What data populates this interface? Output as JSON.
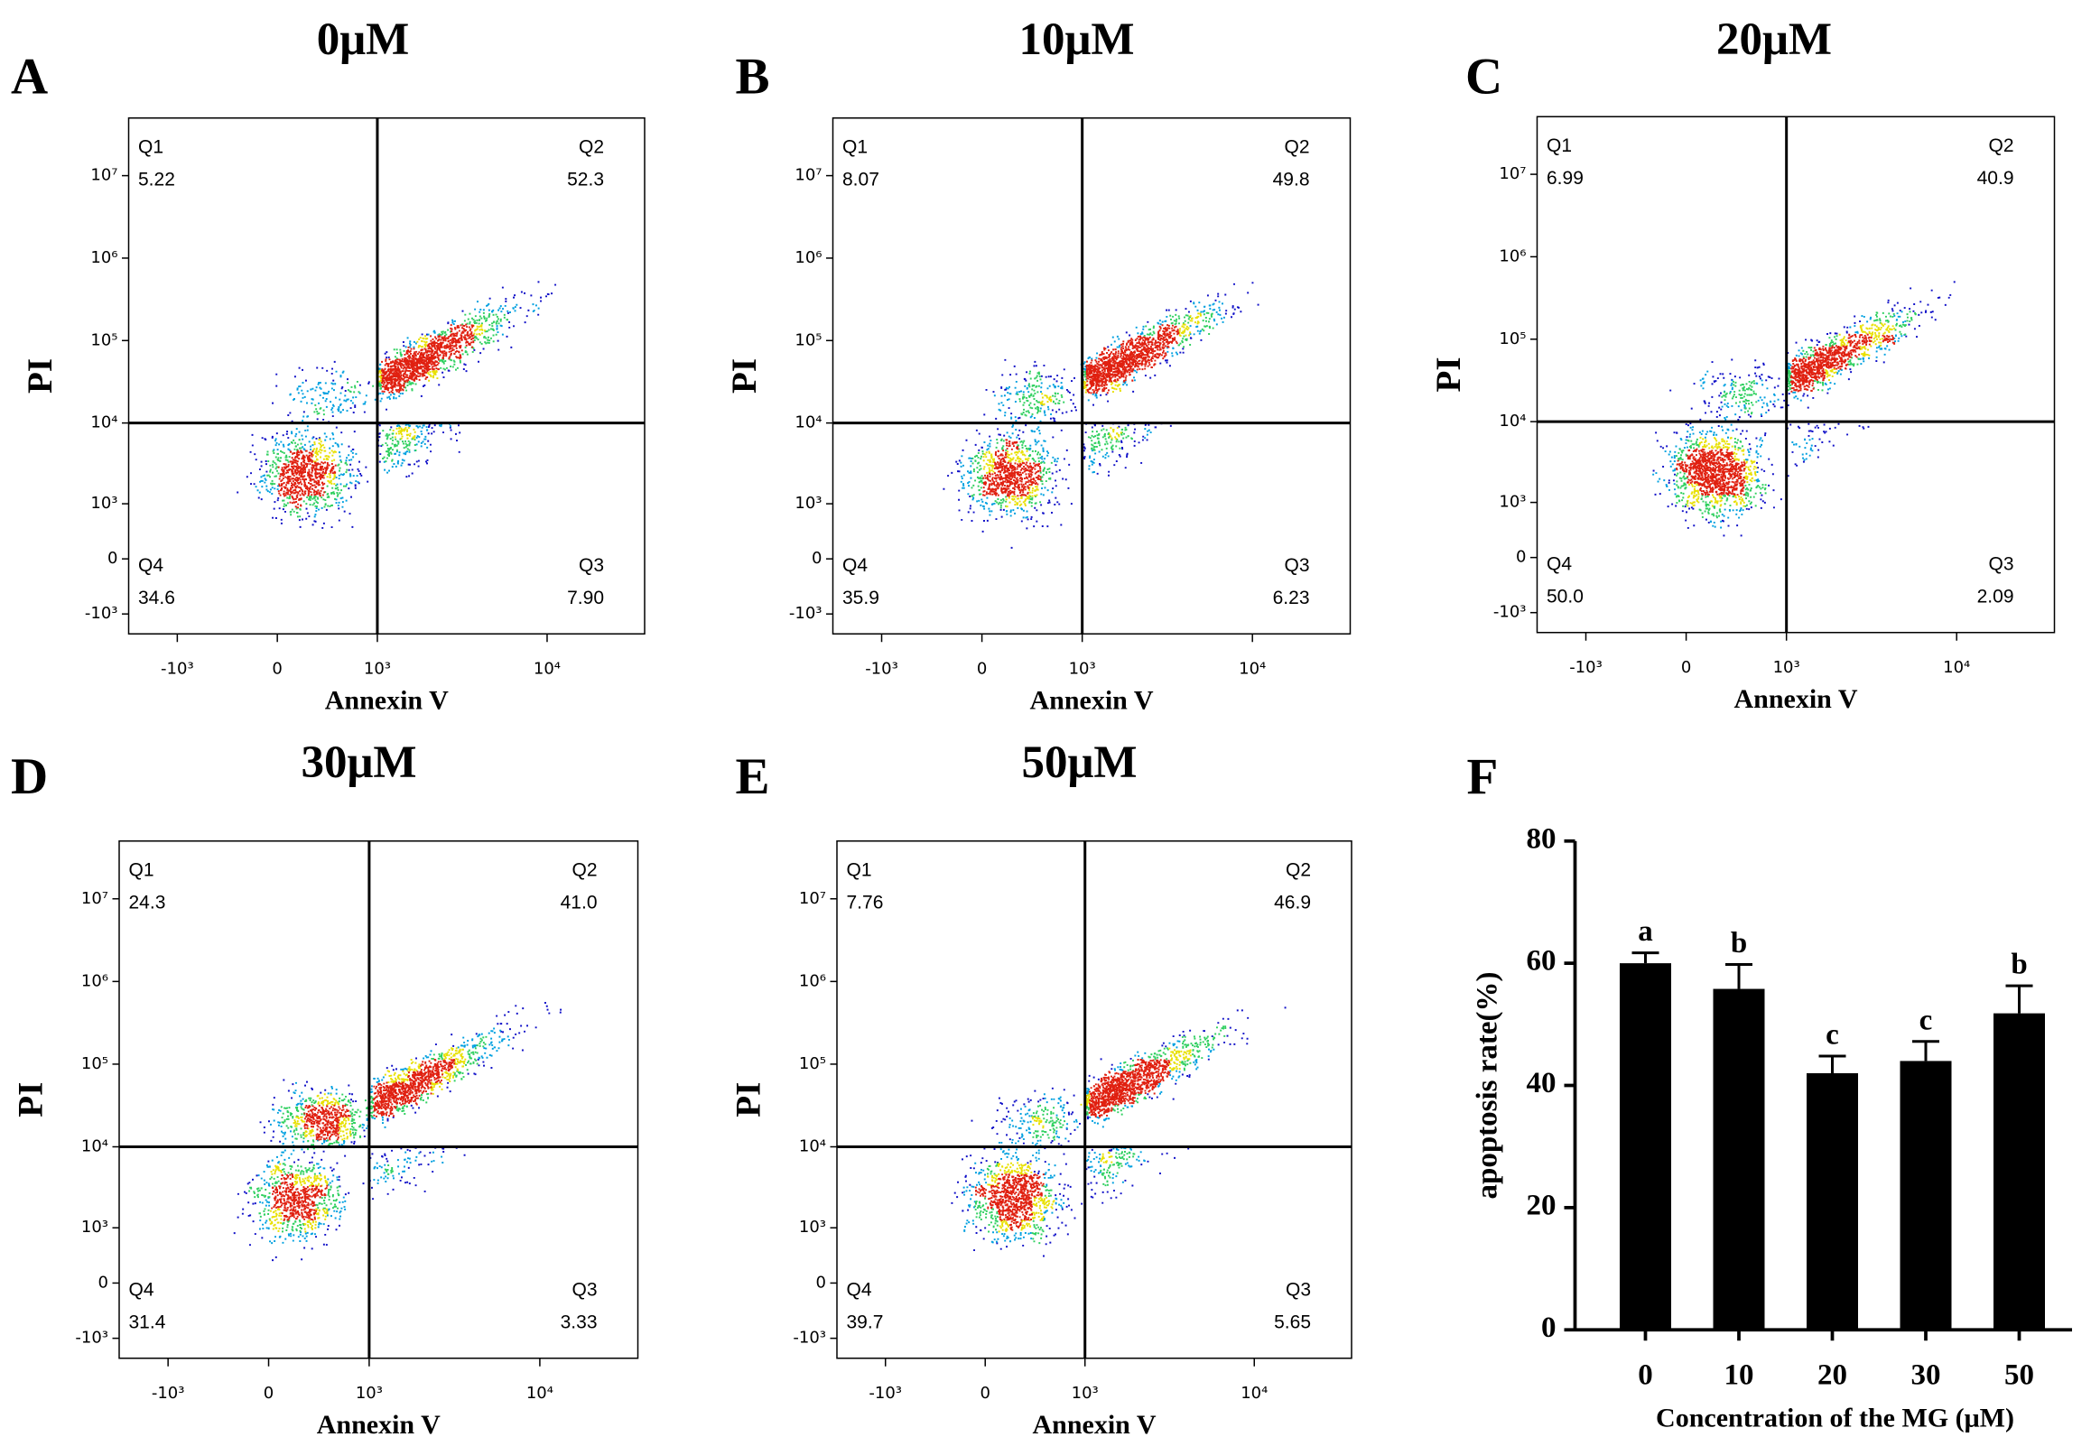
{
  "chart_data": [
    {
      "type": "flow",
      "panel": "A",
      "title": "0μM",
      "xlabel": "Annexin V",
      "ylabel": "PI",
      "scale": "biexponential",
      "xlim": [
        -2000,
        36000
      ],
      "ylim": [
        -1800,
        50000000
      ],
      "xticks": [
        {
          "value": -1000,
          "label": "-10³"
        },
        0,
        {
          "value": 1000,
          "label": "10³"
        },
        {
          "value": 10000,
          "label": "10⁴"
        }
      ],
      "yticks": [
        {
          "value": -1000,
          "label": "-10³"
        },
        0,
        {
          "value": 1000,
          "label": "10³"
        },
        {
          "value": 10000,
          "label": "10⁴"
        },
        {
          "value": 100000,
          "label": "10⁵"
        },
        {
          "value": 1000000,
          "label": "10⁶"
        },
        {
          "value": 10000000,
          "label": "10⁷"
        }
      ],
      "gates": {
        "x": 1000,
        "y": 10000
      },
      "quadrants": [
        {
          "name": "Q1",
          "value": 5.22
        },
        {
          "name": "Q2",
          "value": 52.3
        },
        {
          "name": "Q3",
          "value": 7.9,
          "label": "7.90"
        },
        {
          "name": "Q4",
          "value": 34.6
        }
      ]
    },
    {
      "type": "flow",
      "panel": "B",
      "title": "10μM",
      "xlabel": "Annexin V",
      "ylabel": "PI",
      "scale": "biexponential",
      "xlim": [
        -2000,
        36000
      ],
      "ylim": [
        -1800,
        50000000
      ],
      "xticks": [
        {
          "value": -1000,
          "label": "-10³"
        },
        0,
        {
          "value": 1000,
          "label": "10³"
        },
        {
          "value": 10000,
          "label": "10⁴"
        }
      ],
      "yticks": [
        {
          "value": -1000,
          "label": "-10³"
        },
        0,
        {
          "value": 1000,
          "label": "10³"
        },
        {
          "value": 10000,
          "label": "10⁴"
        },
        {
          "value": 100000,
          "label": "10⁵"
        },
        {
          "value": 1000000,
          "label": "10⁶"
        },
        {
          "value": 10000000,
          "label": "10⁷"
        }
      ],
      "gates": {
        "x": 1000,
        "y": 10000
      },
      "quadrants": [
        {
          "name": "Q1",
          "value": 8.07
        },
        {
          "name": "Q2",
          "value": 49.8
        },
        {
          "name": "Q3",
          "value": 6.23
        },
        {
          "name": "Q4",
          "value": 35.9
        }
      ]
    },
    {
      "type": "flow",
      "panel": "C",
      "title": "20μM",
      "xlabel": "Annexin V",
      "ylabel": "PI",
      "scale": "biexponential",
      "xlim": [
        -2000,
        36000
      ],
      "ylim": [
        -1800,
        50000000
      ],
      "xticks": [
        {
          "value": -1000,
          "label": "-10³"
        },
        0,
        {
          "value": 1000,
          "label": "10³"
        },
        {
          "value": 10000,
          "label": "10⁴"
        }
      ],
      "yticks": [
        {
          "value": -1000,
          "label": "-10³"
        },
        0,
        {
          "value": 1000,
          "label": "10³"
        },
        {
          "value": 10000,
          "label": "10⁴"
        },
        {
          "value": 100000,
          "label": "10⁵"
        },
        {
          "value": 1000000,
          "label": "10⁶"
        },
        {
          "value": 10000000,
          "label": "10⁷"
        }
      ],
      "gates": {
        "x": 1000,
        "y": 10000
      },
      "quadrants": [
        {
          "name": "Q1",
          "value": 6.99
        },
        {
          "name": "Q2",
          "value": 40.9
        },
        {
          "name": "Q3",
          "value": 2.09
        },
        {
          "name": "Q4",
          "value": 50,
          "label": "50.0"
        }
      ]
    },
    {
      "type": "flow",
      "panel": "D",
      "title": "30μM",
      "xlabel": "Annexin V",
      "ylabel": "PI",
      "scale": "biexponential",
      "xlim": [
        -2000,
        36000
      ],
      "ylim": [
        -1800,
        50000000
      ],
      "xticks": [
        {
          "value": -1000,
          "label": "-10³"
        },
        0,
        {
          "value": 1000,
          "label": "10³"
        },
        {
          "value": 10000,
          "label": "10⁴"
        }
      ],
      "yticks": [
        {
          "value": -1000,
          "label": "-10³"
        },
        0,
        {
          "value": 1000,
          "label": "10³"
        },
        {
          "value": 10000,
          "label": "10⁴"
        },
        {
          "value": 100000,
          "label": "10⁵"
        },
        {
          "value": 1000000,
          "label": "10⁶"
        },
        {
          "value": 10000000,
          "label": "10⁷"
        }
      ],
      "gates": {
        "x": 1000,
        "y": 10000
      },
      "quadrants": [
        {
          "name": "Q1",
          "value": 24.3
        },
        {
          "name": "Q2",
          "value": 41,
          "label": "41.0"
        },
        {
          "name": "Q3",
          "value": 3.33
        },
        {
          "name": "Q4",
          "value": 31.4
        }
      ]
    },
    {
      "type": "flow",
      "panel": "E",
      "title": "50μM",
      "xlabel": "Annexin V",
      "ylabel": "PI",
      "scale": "biexponential",
      "xlim": [
        -2000,
        36000
      ],
      "ylim": [
        -1800,
        50000000
      ],
      "xticks": [
        {
          "value": -1000,
          "label": "-10³"
        },
        0,
        {
          "value": 1000,
          "label": "10³"
        },
        {
          "value": 10000,
          "label": "10⁴"
        }
      ],
      "yticks": [
        {
          "value": -1000,
          "label": "-10³"
        },
        0,
        {
          "value": 1000,
          "label": "10³"
        },
        {
          "value": 10000,
          "label": "10⁴"
        },
        {
          "value": 100000,
          "label": "10⁵"
        },
        {
          "value": 1000000,
          "label": "10⁶"
        },
        {
          "value": 10000000,
          "label": "10⁷"
        }
      ],
      "gates": {
        "x": 1000,
        "y": 10000
      },
      "quadrants": [
        {
          "name": "Q1",
          "value": 7.76
        },
        {
          "name": "Q2",
          "value": 46.9
        },
        {
          "name": "Q3",
          "value": 5.65
        },
        {
          "name": "Q4",
          "value": 39.7
        }
      ]
    },
    {
      "type": "bar",
      "panel": "F",
      "xlabel": "Concentration of the MG (μM)",
      "ylabel": "apoptosis rate(%)",
      "categories": [
        "0",
        "10",
        "20",
        "30",
        "50"
      ],
      "values": [
        60,
        55.8,
        42,
        44,
        51.8
      ],
      "errors": [
        1.7,
        4,
        2.8,
        3.2,
        4.5
      ],
      "annotations": [
        "a",
        "b",
        "c",
        "c",
        "b"
      ],
      "color": "#000000",
      "ylim": [
        0,
        80
      ],
      "yticks": [
        0,
        20,
        40,
        60,
        80
      ]
    }
  ]
}
